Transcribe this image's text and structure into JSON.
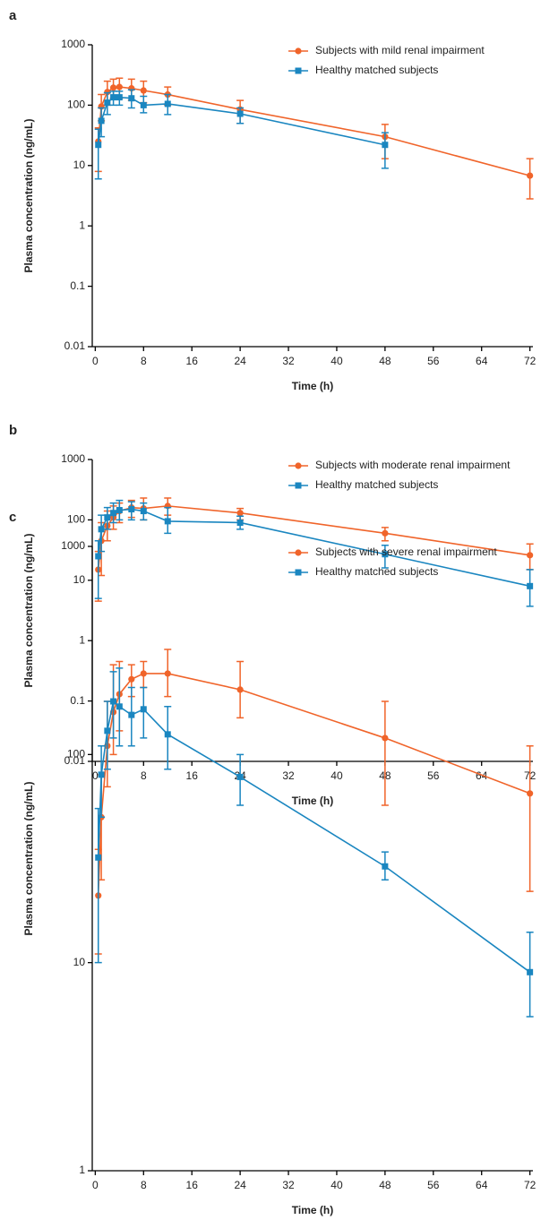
{
  "chart_data": [
    {
      "type": "line",
      "panel_label": "a",
      "x_label": "Time (h)",
      "y_label": "Plasma concentration (ng/mL)",
      "log_y": true,
      "grid": false,
      "legend": "upper right",
      "xlim": [
        -0.5,
        72.5
      ],
      "xticks": [
        0,
        8,
        16,
        24,
        32,
        40,
        48,
        56,
        64,
        72
      ],
      "ylim": [
        0.01,
        1000
      ],
      "yticks": [
        0.01,
        0.1,
        1,
        10,
        100,
        1000
      ],
      "x": [
        0.5,
        1,
        2,
        3,
        4,
        6,
        8,
        12,
        24,
        48,
        72
      ],
      "series": [
        {
          "name": "Subjects with mild renal impairment",
          "color": "#f0642a",
          "marker": "circle",
          "values": [
            25,
            95,
            165,
            195,
            200,
            190,
            175,
            150,
            85,
            30,
            6.8
          ],
          "lower": [
            8,
            55,
            100,
            130,
            130,
            120,
            110,
            100,
            50,
            13,
            2.8
          ],
          "upper": [
            42,
            150,
            250,
            270,
            280,
            270,
            250,
            200,
            120,
            48,
            13
          ]
        },
        {
          "name": "Healthy matched subjects",
          "color": "#1a86c0",
          "marker": "square",
          "values": [
            22,
            55,
            110,
            135,
            135,
            130,
            100,
            105,
            72,
            22,
            null
          ],
          "lower": [
            6,
            30,
            70,
            100,
            100,
            90,
            75,
            70,
            50,
            9,
            null
          ],
          "upper": [
            40,
            90,
            160,
            170,
            170,
            180,
            140,
            150,
            90,
            35,
            null
          ]
        }
      ]
    },
    {
      "type": "line",
      "panel_label": "b",
      "x_label": "Time (h)",
      "y_label": "Plasma concentration (ng/mL)",
      "log_y": true,
      "grid": false,
      "legend": "upper right",
      "xlim": [
        -0.5,
        72.5
      ],
      "xticks": [
        0,
        8,
        16,
        24,
        32,
        40,
        48,
        56,
        64,
        72
      ],
      "ylim": [
        0.01,
        1000
      ],
      "yticks": [
        0.01,
        0.1,
        1,
        10,
        100,
        1000
      ],
      "x": [
        0.5,
        1,
        2,
        3,
        4,
        6,
        8,
        12,
        24,
        48,
        72
      ],
      "series": [
        {
          "name": "Subjects with moderate renal impairment",
          "color": "#f0642a",
          "marker": "circle",
          "values": [
            15,
            45,
            80,
            110,
            140,
            160,
            155,
            170,
            130,
            60,
            26
          ],
          "lower": [
            4.5,
            12,
            45,
            70,
            90,
            110,
            100,
            120,
            100,
            45,
            15
          ],
          "upper": [
            30,
            90,
            140,
            170,
            190,
            210,
            230,
            230,
            155,
            75,
            40
          ]
        },
        {
          "name": "Healthy matched subjects",
          "color": "#1a86c0",
          "marker": "square",
          "values": [
            25,
            70,
            110,
            130,
            145,
            150,
            140,
            95,
            90,
            27,
            8
          ],
          "lower": [
            5,
            30,
            70,
            90,
            100,
            100,
            100,
            60,
            70,
            16,
            3.7
          ],
          "upper": [
            45,
            120,
            160,
            190,
            210,
            200,
            190,
            160,
            115,
            38,
            15
          ]
        }
      ]
    },
    {
      "type": "line",
      "panel_label": "c",
      "x_label": "Time (h)",
      "y_label": "Plasma concentration (ng/mL)",
      "log_y": true,
      "grid": false,
      "legend": "upper right",
      "xlim": [
        -0.5,
        72.5
      ],
      "xticks": [
        0,
        8,
        16,
        24,
        32,
        40,
        48,
        56,
        64,
        72
      ],
      "ylim": [
        1,
        1000
      ],
      "yticks": [
        1,
        10,
        100,
        1000
      ],
      "x": [
        0.5,
        1,
        2,
        3,
        4,
        6,
        8,
        12,
        24,
        48,
        72
      ],
      "series": [
        {
          "name": "Subjects with severe renal impairment",
          "color": "#f0642a",
          "marker": "circle",
          "values": [
            21,
            50,
            110,
            160,
            195,
            230,
            245,
            245,
            205,
            120,
            65
          ],
          "lower": [
            11,
            25,
            70,
            100,
            130,
            190,
            210,
            190,
            150,
            57,
            22
          ],
          "upper": [
            35,
            80,
            180,
            270,
            280,
            270,
            280,
            320,
            280,
            180,
            110
          ]
        },
        {
          "name": "Healthy matched subjects",
          "color": "#1a86c0",
          "marker": "square",
          "values": [
            32,
            80,
            130,
            180,
            170,
            155,
            165,
            125,
            78,
            29,
            9
          ],
          "lower": [
            10,
            50,
            85,
            120,
            110,
            110,
            120,
            85,
            57,
            25,
            5.5
          ],
          "upper": [
            55,
            110,
            180,
            250,
            260,
            210,
            210,
            170,
            100,
            34,
            14
          ]
        }
      ]
    }
  ]
}
